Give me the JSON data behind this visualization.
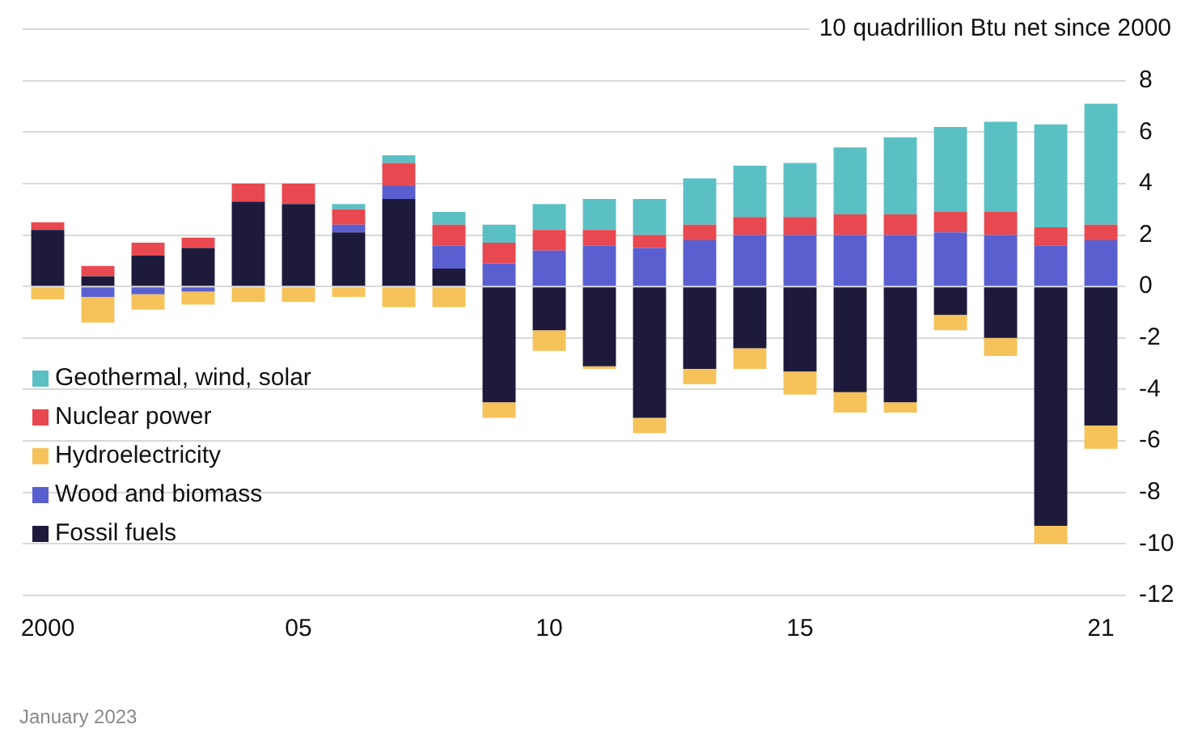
{
  "chart_data": {
    "type": "bar",
    "stacked": true,
    "categories": [
      "2000",
      null,
      null,
      null,
      null,
      "05",
      null,
      null,
      null,
      null,
      "10",
      null,
      null,
      null,
      null,
      "15",
      null,
      null,
      null,
      null,
      null,
      "21"
    ],
    "series": [
      {
        "name": "Fossil fuels",
        "color": "#1e1a3c",
        "values": [
          2.2,
          0.4,
          1.2,
          1.5,
          3.3,
          3.2,
          2.1,
          3.4,
          0.7,
          -4.5,
          -1.7,
          -3.1,
          -5.1,
          -3.2,
          -2.4,
          -3.3,
          -4.1,
          -4.5,
          -1.1,
          -2.0,
          -9.3,
          -5.4
        ]
      },
      {
        "name": "Wood and biomass",
        "color": "#5a5fd0",
        "values": [
          0,
          -0.4,
          -0.3,
          -0.2,
          0,
          0,
          0.3,
          0.5,
          0.9,
          0.9,
          1.4,
          1.6,
          1.5,
          1.8,
          2.0,
          2.0,
          2.0,
          2.0,
          2.1,
          2.0,
          1.6,
          1.8
        ]
      },
      {
        "name": "Hydroelectricity",
        "color": "#f5c35a",
        "values": [
          -0.5,
          -1.0,
          -0.6,
          -0.5,
          -0.6,
          -0.6,
          -0.4,
          -0.8,
          -0.8,
          -0.6,
          -0.8,
          -0.1,
          -0.6,
          -0.6,
          -0.8,
          -0.9,
          -0.8,
          -0.4,
          -0.6,
          -0.7,
          -0.7,
          -0.9
        ]
      },
      {
        "name": "Nuclear power",
        "color": "#e8484f",
        "values": [
          0.3,
          0.4,
          0.5,
          0.4,
          0.7,
          0.8,
          0.6,
          0.9,
          0.8,
          0.8,
          0.8,
          0.6,
          0.5,
          0.6,
          0.7,
          0.7,
          0.8,
          0.8,
          0.8,
          0.9,
          0.7,
          0.6
        ]
      },
      {
        "name": "Geothermal, wind, solar",
        "color": "#5bc0c4",
        "values": [
          0,
          0,
          0,
          0,
          0,
          0,
          0.2,
          0.3,
          0.5,
          0.7,
          1.0,
          1.2,
          1.4,
          1.8,
          2.0,
          2.1,
          2.6,
          3.0,
          3.3,
          3.5,
          4.0,
          4.7
        ]
      }
    ],
    "ylim": [
      -12,
      10
    ],
    "yticks": [
      -12,
      -10,
      -8,
      -6,
      -4,
      -2,
      0,
      2,
      4,
      6,
      8,
      {
        "value": 10,
        "label": null
      }
    ],
    "ylabel": "10 quadrillion Btu net since 2000",
    "grid": "y",
    "legend": "left",
    "annotations": [
      "January 2023"
    ]
  }
}
